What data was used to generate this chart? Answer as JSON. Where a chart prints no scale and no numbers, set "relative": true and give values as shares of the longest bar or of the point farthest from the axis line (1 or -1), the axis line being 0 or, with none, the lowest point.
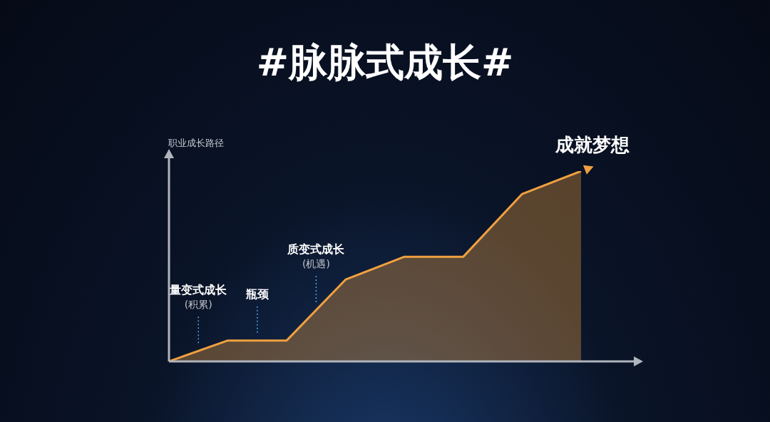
{
  "chart_data": {
    "type": "area",
    "title": "#脉脉式成长#",
    "ylabel": "职业成长路径",
    "relative": true,
    "grid": false,
    "legend": false,
    "marker": "none",
    "categories": [
      null,
      null,
      null,
      null,
      null,
      null,
      null,
      null
    ],
    "series": [
      {
        "color": "#f0a040",
        "values": [
          0,
          0.11,
          0.11,
          0.43,
          0.55,
          0.55,
          0.88,
          1
        ]
      }
    ],
    "annotations": [
      "量变式成长\n(积累)",
      "瓶颈",
      "质变式成长\n(机遇)",
      "成就梦想"
    ]
  }
}
